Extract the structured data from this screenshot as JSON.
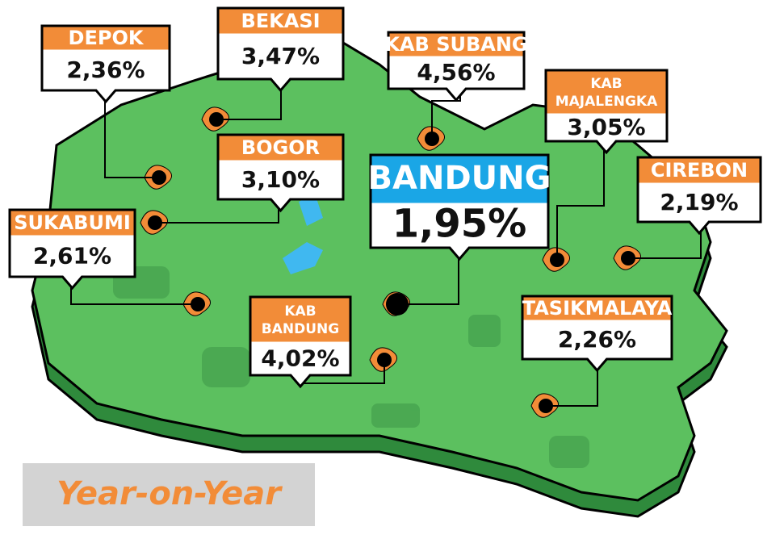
{
  "title": "Year-on-Year",
  "regions": [
    {
      "name": "DEPOK",
      "value": "2,36%"
    },
    {
      "name": "BEKASI",
      "value": "3,47%"
    },
    {
      "name": "KAB SUBANG",
      "value": "4,56%"
    },
    {
      "name": "KAB MAJALENGKA",
      "value": "3,05%"
    },
    {
      "name": "CIREBON",
      "value": "2,19%"
    },
    {
      "name": "BOGOR",
      "value": "3,10%"
    },
    {
      "name": "SUKABUMI",
      "value": "2,61%"
    },
    {
      "name": "BANDUNG",
      "value": "1,95%"
    },
    {
      "name": "KAB BANDUNG",
      "value": "4,02%"
    },
    {
      "name": "TASIKMALAYA",
      "value": "2,26%"
    }
  ]
}
